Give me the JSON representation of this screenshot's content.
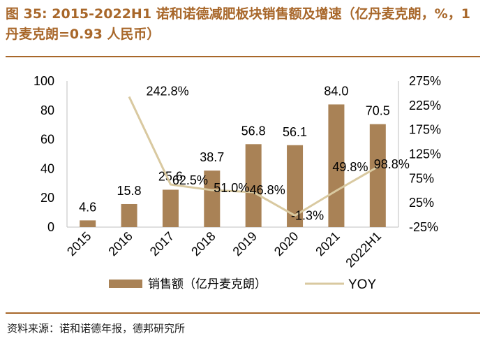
{
  "title": "图 35: 2015-2022H1 诺和诺德减肥板块销售额及增速（亿丹麦克朗，%，1 丹麦克朗=0.93 人民币）",
  "source": "资料来源：诺和诺德年报，德邦研究所",
  "chart_data": {
    "type": "bar",
    "categories": [
      "2015",
      "2016",
      "2017",
      "2018",
      "2019",
      "2020",
      "2021",
      "2022H1"
    ],
    "series": [
      {
        "name": "销售额（亿丹麦克朗）",
        "type": "bar",
        "axis": "left",
        "color": "#a98256",
        "values": [
          4.6,
          15.8,
          25.6,
          38.7,
          56.8,
          56.1,
          84.0,
          70.5
        ],
        "labels": [
          "4.6",
          "15.8",
          "25.6",
          "38.7",
          "56.8",
          "56.1",
          "84.0",
          "70.5"
        ]
      },
      {
        "name": "YOY",
        "type": "line",
        "axis": "right",
        "color": "#d9c9a0",
        "values": [
          null,
          242.8,
          62.5,
          51.0,
          46.8,
          -1.3,
          49.8,
          98.8
        ],
        "labels": [
          "",
          "242.8%",
          "62.5%",
          "51.0%",
          "46.8%",
          "-1.3%",
          "49.8%",
          "98.8%"
        ]
      }
    ],
    "y_left": {
      "ylim": [
        0,
        100
      ],
      "ticks": [
        "0",
        "20",
        "40",
        "60",
        "80",
        "100"
      ]
    },
    "y_right": {
      "ylim": [
        -25,
        275
      ],
      "ticks": [
        "-25%",
        "25%",
        "75%",
        "125%",
        "175%",
        "225%",
        "275%"
      ]
    },
    "legend_position": "bottom",
    "grid": false
  }
}
